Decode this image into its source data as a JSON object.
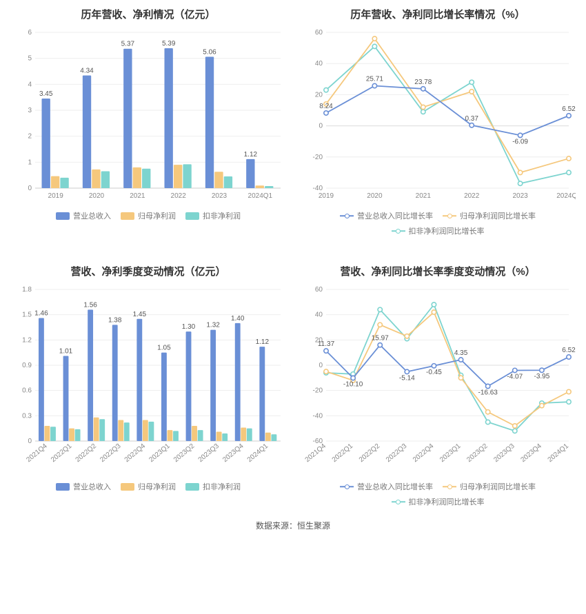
{
  "colors": {
    "blue": "#6a8fd6",
    "orange": "#f5c87d",
    "teal": "#7dd4cf",
    "grid": "#eeeeee",
    "axis": "#cccccc",
    "text_axis": "#888888",
    "text_label": "#555555",
    "title": "#333333",
    "bg": "#ffffff"
  },
  "footer": "数据来源：恒生聚源",
  "charts": {
    "tl": {
      "title": "历年营收、净利情况（亿元）",
      "type": "bar",
      "categories": [
        "2019",
        "2020",
        "2021",
        "2022",
        "2023",
        "2024Q1"
      ],
      "series": [
        {
          "name": "营业总收入",
          "color": "#6a8fd6",
          "values": [
            3.45,
            4.34,
            5.37,
            5.39,
            5.06,
            1.12
          ]
        },
        {
          "name": "归母净利润",
          "color": "#f5c87d",
          "values": [
            0.46,
            0.72,
            0.8,
            0.9,
            0.63,
            0.1
          ]
        },
        {
          "name": "扣非净利润",
          "color": "#7dd4cf",
          "values": [
            0.4,
            0.65,
            0.75,
            0.92,
            0.45,
            0.08
          ]
        }
      ],
      "label_values": [
        3.45,
        4.34,
        5.37,
        5.39,
        5.06,
        1.12
      ],
      "ylim": [
        0,
        6
      ],
      "ytick_step": 1,
      "bar_group_width": 0.68,
      "legend_kind": "bar",
      "legend": [
        "营业总收入",
        "归母净利润",
        "扣非净利润"
      ],
      "title_fontsize": 15,
      "label_fontsize": 10,
      "axis_fontsize": 10
    },
    "tr": {
      "title": "历年营收、净利同比增长率情况（%）",
      "type": "line",
      "categories": [
        "2019",
        "2020",
        "2021",
        "2022",
        "2023",
        "2024Q1"
      ],
      "series": [
        {
          "name": "营业总收入同比增长率",
          "color": "#6a8fd6",
          "values": [
            8.24,
            25.71,
            23.78,
            0.37,
            -6.09,
            6.52
          ]
        },
        {
          "name": "归母净利润同比增长率",
          "color": "#f5c87d",
          "values": [
            14,
            56,
            12,
            22,
            -30,
            -21
          ]
        },
        {
          "name": "扣非净利润同比增长率",
          "color": "#7dd4cf",
          "values": [
            23,
            51,
            9,
            28,
            -37,
            -30
          ]
        }
      ],
      "point_labels": [
        {
          "cat": "2019",
          "val": 8.24,
          "text": "8.24"
        },
        {
          "cat": "2020",
          "val": 25.71,
          "text": "25.71"
        },
        {
          "cat": "2021",
          "val": 23.78,
          "text": "23.78"
        },
        {
          "cat": "2022",
          "val": 0.37,
          "text": "0.37"
        },
        {
          "cat": "2023",
          "val": -6.09,
          "text": "-6.09"
        },
        {
          "cat": "2024Q1",
          "val": 6.52,
          "text": "6.52"
        }
      ],
      "ylim": [
        -40,
        60
      ],
      "ytick_step": 20,
      "legend_kind": "line",
      "legend": [
        "营业总收入同比增长率",
        "归母净利润同比增长率",
        "扣非净利润同比增长率"
      ],
      "title_fontsize": 15,
      "label_fontsize": 10,
      "axis_fontsize": 10
    },
    "bl": {
      "title": "营收、净利季度变动情况（亿元）",
      "type": "bar",
      "categories": [
        "2021Q4",
        "2022Q1",
        "2022Q2",
        "2022Q3",
        "2022Q4",
        "2023Q1",
        "2023Q2",
        "2023Q3",
        "2023Q4",
        "2024Q1"
      ],
      "series": [
        {
          "name": "营业总收入",
          "color": "#6a8fd6",
          "values": [
            1.46,
            1.01,
            1.56,
            1.38,
            1.45,
            1.05,
            1.3,
            1.32,
            1.4,
            1.12
          ]
        },
        {
          "name": "归母净利润",
          "color": "#f5c87d",
          "values": [
            0.18,
            0.15,
            0.28,
            0.25,
            0.25,
            0.13,
            0.18,
            0.11,
            0.16,
            0.1
          ]
        },
        {
          "name": "扣非净利润",
          "color": "#7dd4cf",
          "values": [
            0.17,
            0.14,
            0.26,
            0.22,
            0.23,
            0.12,
            0.13,
            0.09,
            0.15,
            0.08
          ]
        }
      ],
      "label_values": [
        1.46,
        1.01,
        1.56,
        1.38,
        1.45,
        1.05,
        1.3,
        1.32,
        1.4,
        1.12
      ],
      "ylim": [
        0,
        1.8
      ],
      "ytick_step": 0.3,
      "bar_group_width": 0.72,
      "rot_x": true,
      "legend_kind": "bar",
      "legend": [
        "营业总收入",
        "归母净利润",
        "扣非净利润"
      ],
      "title_fontsize": 15,
      "label_fontsize": 10,
      "axis_fontsize": 10
    },
    "br": {
      "title": "营收、净利同比增长率季度变动情况（%）",
      "type": "line",
      "categories": [
        "2021Q4",
        "2022Q1",
        "2022Q2",
        "2022Q3",
        "2022Q4",
        "2023Q1",
        "2023Q2",
        "2023Q3",
        "2023Q4",
        "2024Q1"
      ],
      "series": [
        {
          "name": "营业总收入同比增长率",
          "color": "#6a8fd6",
          "values": [
            11.37,
            -10.1,
            15.97,
            -5.14,
            -0.45,
            4.35,
            -16.63,
            -4.07,
            -3.95,
            6.52
          ]
        },
        {
          "name": "归母净利润同比增长率",
          "color": "#f5c87d",
          "values": [
            -5,
            -12,
            32,
            23,
            42,
            -10,
            -37,
            -48,
            -32,
            -21
          ]
        },
        {
          "name": "扣非净利润同比增长率",
          "color": "#7dd4cf",
          "values": [
            -6,
            -7,
            44,
            21,
            48,
            -8,
            -45,
            -52,
            -30,
            -29
          ]
        }
      ],
      "point_labels": [
        {
          "cat": "2021Q4",
          "val": 11.37,
          "text": "11.37"
        },
        {
          "cat": "2022Q1",
          "val": -10.1,
          "text": "-10.10"
        },
        {
          "cat": "2022Q2",
          "val": 15.97,
          "text": "15.97"
        },
        {
          "cat": "2022Q3",
          "val": -5.14,
          "text": "-5.14"
        },
        {
          "cat": "2022Q4",
          "val": -0.45,
          "text": "-0.45"
        },
        {
          "cat": "2023Q1",
          "val": 4.35,
          "text": "4.35"
        },
        {
          "cat": "2023Q2",
          "val": -16.63,
          "text": "-16.63"
        },
        {
          "cat": "2023Q3",
          "val": -4.07,
          "text": "-4.07"
        },
        {
          "cat": "2023Q4",
          "val": -3.95,
          "text": "-3.95"
        },
        {
          "cat": "2024Q1",
          "val": 6.52,
          "text": "6.52"
        }
      ],
      "ylim": [
        -60,
        60
      ],
      "ytick_step": 20,
      "rot_x": true,
      "legend_kind": "line",
      "legend": [
        "营业总收入同比增长率",
        "归母净利润同比增长率",
        "扣非净利润同比增长率"
      ],
      "title_fontsize": 15,
      "label_fontsize": 10,
      "axis_fontsize": 10
    }
  }
}
